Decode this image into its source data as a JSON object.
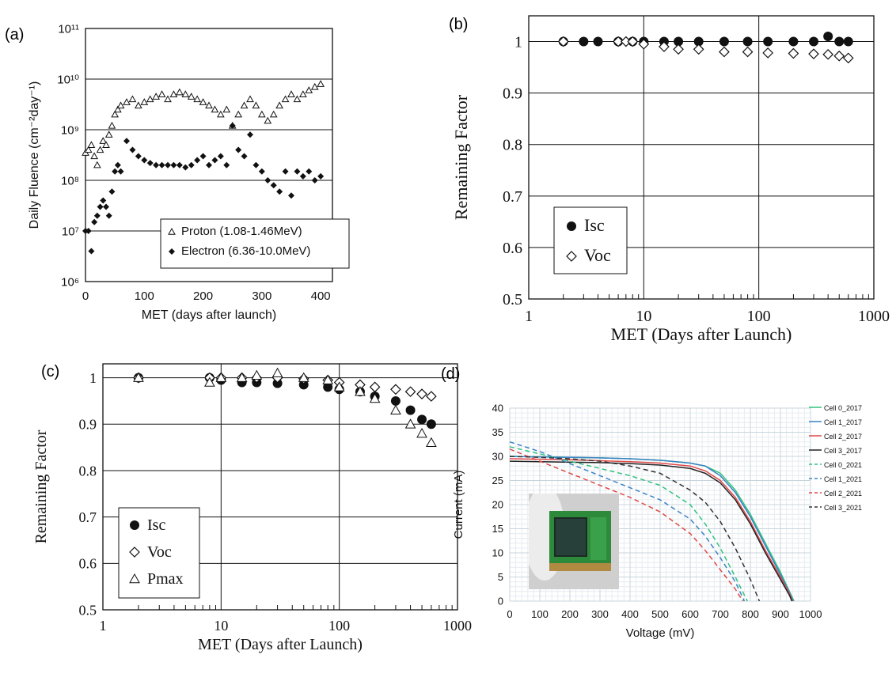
{
  "panel_labels": {
    "a": "(a)",
    "b": "(b)",
    "c": "(c)",
    "d": "(d)"
  },
  "colors": {
    "cell0_2017": "#2ec27e",
    "cell1_2017": "#3b82c4",
    "cell2_2017": "#e04848",
    "cell3_2017": "#222222",
    "cell0_2021": "#2ec27e",
    "cell1_2021": "#3b82c4",
    "cell2_2021": "#e04848",
    "cell3_2021": "#333333"
  },
  "chart_data": [
    {
      "id": "a",
      "type": "scatter",
      "xlabel": "MET (days after launch)",
      "ylabel": "Daily Fluence (cm⁻²day⁻¹)",
      "xlim": [
        0,
        420
      ],
      "ylim": [
        1000000.0,
        100000000000.0
      ],
      "yscale": "log",
      "xticks": [
        "0",
        "100",
        "200",
        "300",
        "400"
      ],
      "yticks": [
        "10⁶",
        "10⁷",
        "10⁸",
        "10⁹",
        "10¹⁰",
        "10¹¹"
      ],
      "grid": "horizontal",
      "legend_position": "bottom-right",
      "series": [
        {
          "name": "Proton (1.08-1.46MeV)",
          "marker": "open-triangle",
          "x": [
            0,
            5,
            10,
            15,
            20,
            25,
            30,
            35,
            40,
            45,
            50,
            55,
            60,
            70,
            80,
            90,
            100,
            110,
            120,
            130,
            140,
            150,
            160,
            170,
            180,
            190,
            200,
            210,
            220,
            230,
            240,
            250,
            260,
            270,
            280,
            290,
            300,
            310,
            320,
            330,
            340,
            350,
            360,
            370,
            380,
            390,
            400
          ],
          "y": [
            350000000.0,
            400000000.0,
            500000000.0,
            300000000.0,
            200000000.0,
            400000000.0,
            600000000.0,
            500000000.0,
            800000000.0,
            1200000000.0,
            2000000000.0,
            2500000000.0,
            3000000000.0,
            3500000000.0,
            4000000000.0,
            3000000000.0,
            3500000000.0,
            4000000000.0,
            4500000000.0,
            5000000000.0,
            4000000000.0,
            5000000000.0,
            5500000000.0,
            5000000000.0,
            4500000000.0,
            4000000000.0,
            3500000000.0,
            3000000000.0,
            2500000000.0,
            2000000000.0,
            2500000000.0,
            1200000000.0,
            2000000000.0,
            3000000000.0,
            4000000000.0,
            3000000000.0,
            2000000000.0,
            1500000000.0,
            2000000000.0,
            3000000000.0,
            4000000000.0,
            5000000000.0,
            4000000000.0,
            5000000000.0,
            6000000000.0,
            7000000000.0,
            8000000000.0
          ]
        },
        {
          "name": "Electron (6.36-10.0MeV)",
          "marker": "filled-diamond",
          "x": [
            0,
            5,
            10,
            15,
            20,
            25,
            30,
            35,
            40,
            45,
            50,
            55,
            60,
            70,
            80,
            90,
            100,
            110,
            120,
            130,
            140,
            150,
            160,
            170,
            180,
            190,
            200,
            210,
            220,
            230,
            240,
            250,
            260,
            270,
            280,
            290,
            300,
            310,
            320,
            330,
            340,
            350,
            360,
            370,
            380,
            390,
            400
          ],
          "y": [
            10000000.0,
            10000000.0,
            4000000.0,
            15000000.0,
            20000000.0,
            30000000.0,
            40000000.0,
            30000000.0,
            20000000.0,
            60000000.0,
            150000000.0,
            200000000.0,
            150000000.0,
            600000000.0,
            400000000.0,
            300000000.0,
            250000000.0,
            220000000.0,
            200000000.0,
            200000000.0,
            200000000.0,
            200000000.0,
            200000000.0,
            180000000.0,
            200000000.0,
            250000000.0,
            300000000.0,
            200000000.0,
            250000000.0,
            300000000.0,
            200000000.0,
            1200000000.0,
            400000000.0,
            300000000.0,
            800000000.0,
            200000000.0,
            150000000.0,
            100000000.0,
            80000000.0,
            60000000.0,
            150000000.0,
            50000000.0,
            150000000.0,
            120000000.0,
            150000000.0,
            100000000.0,
            120000000.0
          ]
        }
      ]
    },
    {
      "id": "b",
      "type": "scatter",
      "xlabel": "MET (Days after Launch)",
      "ylabel": "Remaining Factor",
      "xlim": [
        1,
        1000
      ],
      "xscale": "log",
      "ylim": [
        0.5,
        1.05
      ],
      "xticks": [
        "1",
        "10",
        "100",
        "1000"
      ],
      "yticks": [
        "0.5",
        "0.6",
        "0.7",
        "0.8",
        "0.9",
        "1"
      ],
      "grid": "both",
      "legend_position": "bottom-left",
      "series": [
        {
          "name": "Isc",
          "marker": "filled-circle",
          "x": [
            2,
            3,
            4,
            6,
            8,
            10,
            15,
            20,
            30,
            50,
            80,
            120,
            200,
            300,
            400,
            500,
            600
          ],
          "y": [
            1.0,
            1.0,
            1.0,
            1.0,
            1.0,
            1.0,
            1.0,
            1.0,
            1.0,
            1.0,
            1.0,
            1.0,
            1.0,
            1.0,
            1.01,
            1.0,
            1.0
          ]
        },
        {
          "name": "Voc",
          "marker": "open-diamond",
          "x": [
            2,
            6,
            7,
            8,
            10,
            15,
            20,
            30,
            50,
            80,
            120,
            200,
            300,
            400,
            500,
            600
          ],
          "y": [
            1.0,
            1.0,
            1.0,
            1.0,
            0.995,
            0.99,
            0.985,
            0.985,
            0.98,
            0.98,
            0.978,
            0.977,
            0.976,
            0.975,
            0.972,
            0.968
          ]
        }
      ]
    },
    {
      "id": "c",
      "type": "scatter",
      "xlabel": "MET (Days after Launch)",
      "ylabel": "Remaining Factor",
      "xlim": [
        1,
        1000
      ],
      "xscale": "log",
      "ylim": [
        0.5,
        1.03
      ],
      "xticks": [
        "1",
        "10",
        "100",
        "1000"
      ],
      "yticks": [
        "0.5",
        "0.6",
        "0.7",
        "0.8",
        "0.9",
        "1"
      ],
      "grid": "both",
      "legend_position": "bottom-left",
      "series": [
        {
          "name": "Isc",
          "marker": "filled-circle",
          "x": [
            2,
            8,
            10,
            15,
            20,
            30,
            50,
            80,
            100,
            150,
            200,
            300,
            400,
            500,
            600
          ],
          "y": [
            1.0,
            1.0,
            0.995,
            0.99,
            0.99,
            0.988,
            0.985,
            0.98,
            0.975,
            0.97,
            0.96,
            0.95,
            0.93,
            0.91,
            0.9
          ]
        },
        {
          "name": "Voc",
          "marker": "open-diamond",
          "x": [
            2,
            8,
            10,
            15,
            20,
            30,
            50,
            80,
            100,
            150,
            200,
            300,
            400,
            500,
            600
          ],
          "y": [
            1.0,
            1.0,
            1.0,
            1.0,
            1.0,
            1.0,
            0.998,
            0.995,
            0.99,
            0.985,
            0.98,
            0.975,
            0.97,
            0.965,
            0.96
          ]
        },
        {
          "name": "Pmax",
          "marker": "open-triangle",
          "x": [
            2,
            8,
            10,
            15,
            20,
            30,
            50,
            80,
            100,
            150,
            200,
            300,
            400,
            500,
            600
          ],
          "y": [
            1.0,
            0.99,
            1.0,
            1.0,
            1.005,
            1.01,
            1.0,
            0.995,
            0.98,
            0.97,
            0.955,
            0.93,
            0.9,
            0.88,
            0.86
          ]
        }
      ]
    },
    {
      "id": "d",
      "type": "line",
      "xlabel": "Voltage (mV)",
      "ylabel": "Current (mA)",
      "xlim": [
        0,
        1000
      ],
      "ylim": [
        0,
        40
      ],
      "xticks": [
        "0",
        "100",
        "200",
        "300",
        "400",
        "500",
        "600",
        "700",
        "800",
        "900",
        "1000"
      ],
      "yticks": [
        "0",
        "5",
        "10",
        "15",
        "20",
        "25",
        "30",
        "35",
        "40"
      ],
      "grid": "both",
      "legend_position": "top-right",
      "series": [
        {
          "name": "Cell 0_2017",
          "dashed": false,
          "x": [
            0,
            100,
            200,
            300,
            400,
            500,
            600,
            650,
            700,
            750,
            800,
            850,
            900,
            930,
            945
          ],
          "y": [
            30,
            29.9,
            29.8,
            29.7,
            29.5,
            29.2,
            28.6,
            28,
            26.5,
            23,
            18,
            12,
            6,
            2,
            0
          ]
        },
        {
          "name": "Cell 1_2017",
          "dashed": false,
          "x": [
            0,
            100,
            200,
            300,
            400,
            500,
            600,
            650,
            700,
            750,
            800,
            850,
            900,
            930,
            942
          ],
          "y": [
            30,
            29.9,
            29.8,
            29.7,
            29.5,
            29.2,
            28.6,
            28,
            26,
            22.5,
            17.5,
            11.5,
            5.5,
            1.8,
            0
          ]
        },
        {
          "name": "Cell 2_2017",
          "dashed": false,
          "x": [
            0,
            100,
            200,
            300,
            400,
            500,
            600,
            650,
            700,
            750,
            800,
            850,
            900,
            930,
            940
          ],
          "y": [
            29.5,
            29.4,
            29.3,
            29.1,
            28.9,
            28.6,
            28,
            27,
            25,
            21.5,
            16.5,
            10.5,
            5,
            1.5,
            0
          ]
        },
        {
          "name": "Cell 3_2017",
          "dashed": false,
          "x": [
            0,
            100,
            200,
            300,
            400,
            500,
            600,
            650,
            700,
            750,
            800,
            850,
            900,
            930,
            938
          ],
          "y": [
            29,
            28.9,
            28.8,
            28.7,
            28.5,
            28.2,
            27.5,
            26.5,
            24.5,
            21,
            16,
            10,
            4.5,
            1.2,
            0
          ]
        },
        {
          "name": "Cell 0_2021",
          "dashed": true,
          "x": [
            0,
            100,
            200,
            300,
            400,
            500,
            600,
            650,
            700,
            750,
            790
          ],
          "y": [
            32,
            30.5,
            29,
            27.5,
            26,
            24,
            20,
            16,
            11,
            5,
            0
          ]
        },
        {
          "name": "Cell 1_2021",
          "dashed": true,
          "x": [
            0,
            100,
            200,
            300,
            400,
            500,
            600,
            650,
            700,
            750,
            780
          ],
          "y": [
            33,
            31,
            28.5,
            26,
            23.5,
            21,
            17,
            13.5,
            9,
            4,
            0
          ]
        },
        {
          "name": "Cell 2_2021",
          "dashed": true,
          "x": [
            0,
            100,
            200,
            300,
            400,
            500,
            600,
            650,
            700,
            750,
            775
          ],
          "y": [
            31.5,
            29,
            26.5,
            24,
            21.5,
            18.5,
            14,
            10.5,
            6.5,
            2.5,
            0
          ]
        },
        {
          "name": "Cell 3_2021",
          "dashed": true,
          "x": [
            0,
            100,
            200,
            300,
            400,
            500,
            600,
            650,
            700,
            750,
            800,
            830
          ],
          "y": [
            30,
            29.8,
            29.5,
            29,
            28,
            26.5,
            23,
            20.5,
            16.5,
            11,
            4.5,
            0
          ]
        }
      ]
    }
  ]
}
